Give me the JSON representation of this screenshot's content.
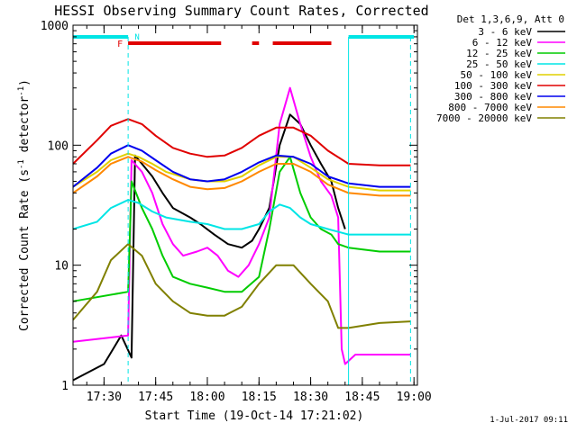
{
  "chart_data": {
    "type": "line",
    "title": "HESSI Observing Summary Count Rates, Corrected",
    "xlabel": "Start Time (19-Oct-14 17:21:02)",
    "ylabel": "Corrected Count Rate (s-1 detector-1)",
    "ylabel_parts": {
      "main": "Corrected Count Rate (s",
      "sup1": "-1",
      "mid": " detector",
      "sup2": "-1",
      "end": ")"
    },
    "yscale": "log",
    "xlim": [
      "17:21",
      "19:01"
    ],
    "ylim": [
      1,
      1000
    ],
    "x_ticks": [
      "17:30",
      "17:45",
      "18:00",
      "18:15",
      "18:30",
      "18:45",
      "19:00"
    ],
    "y_ticks": [
      "1",
      "10",
      "100",
      "1000"
    ],
    "legend_title": "Det 1,3,6,9, Att 0",
    "legend_position": "top-right",
    "footer_date": "1-Jul-2017 09:11",
    "flag_labels": {
      "flare": "F",
      "night": "N"
    },
    "flags": {
      "night_intervals": [
        [
          "17:21",
          "17:37"
        ],
        [
          "18:41",
          "19:00"
        ]
      ],
      "flare_intervals": [
        [
          "17:37",
          "18:04"
        ],
        [
          "18:13",
          "18:15"
        ],
        [
          "18:19",
          "18:36"
        ]
      ],
      "night_color": "#00e5e5",
      "flare_color": "#e00000"
    },
    "vertical_markers": [
      "17:37",
      "18:41",
      "18:59"
    ],
    "series": [
      {
        "name": "3 - 6 keV",
        "color": "#000000",
        "points": [
          [
            "17:21",
            1.1
          ],
          [
            "17:30",
            1.5
          ],
          [
            "17:35",
            2.6
          ],
          [
            "17:38",
            1.7
          ],
          [
            "17:39",
            82
          ],
          [
            "17:41",
            70
          ],
          [
            "17:44",
            55
          ],
          [
            "17:47",
            40
          ],
          [
            "17:50",
            30
          ],
          [
            "17:55",
            25
          ],
          [
            "17:58",
            22
          ],
          [
            "18:02",
            18
          ],
          [
            "18:06",
            15
          ],
          [
            "18:10",
            14
          ],
          [
            "18:13",
            16
          ],
          [
            "18:15",
            20
          ],
          [
            "18:18",
            30
          ],
          [
            "18:21",
            100
          ],
          [
            "18:24",
            180
          ],
          [
            "18:27",
            150
          ],
          [
            "18:30",
            100
          ],
          [
            "18:33",
            70
          ],
          [
            "18:36",
            50
          ],
          [
            "18:38",
            30
          ],
          [
            "18:40",
            20
          ]
        ]
      },
      {
        "name": "6 - 12 keV",
        "color": "#ff00ff",
        "points": [
          [
            "17:21",
            2.3
          ],
          [
            "17:37",
            2.6
          ],
          [
            "17:38",
            75
          ],
          [
            "17:41",
            60
          ],
          [
            "17:44",
            40
          ],
          [
            "17:47",
            22
          ],
          [
            "17:50",
            15
          ],
          [
            "17:53",
            12
          ],
          [
            "17:57",
            13
          ],
          [
            "18:00",
            14
          ],
          [
            "18:03",
            12
          ],
          [
            "18:06",
            9
          ],
          [
            "18:09",
            8
          ],
          [
            "18:12",
            10
          ],
          [
            "18:15",
            15
          ],
          [
            "18:18",
            25
          ],
          [
            "18:21",
            150
          ],
          [
            "18:24",
            300
          ],
          [
            "18:27",
            150
          ],
          [
            "18:30",
            80
          ],
          [
            "18:33",
            50
          ],
          [
            "18:36",
            38
          ],
          [
            "18:38",
            25
          ],
          [
            "18:39",
            2
          ],
          [
            "18:40",
            1.5
          ],
          [
            "18:43",
            1.8
          ],
          [
            "18:50",
            1.8
          ],
          [
            "18:59",
            1.8
          ]
        ]
      },
      {
        "name": "12 - 25 keV",
        "color": "#00cc00",
        "points": [
          [
            "17:21",
            5
          ],
          [
            "17:37",
            6
          ],
          [
            "17:38",
            50
          ],
          [
            "17:41",
            30
          ],
          [
            "17:44",
            20
          ],
          [
            "17:47",
            12
          ],
          [
            "17:50",
            8
          ],
          [
            "17:55",
            7
          ],
          [
            "18:00",
            6.5
          ],
          [
            "18:05",
            6
          ],
          [
            "18:10",
            6
          ],
          [
            "18:15",
            8
          ],
          [
            "18:18",
            20
          ],
          [
            "18:21",
            60
          ],
          [
            "18:24",
            80
          ],
          [
            "18:27",
            40
          ],
          [
            "18:30",
            25
          ],
          [
            "18:33",
            20
          ],
          [
            "18:36",
            18
          ],
          [
            "18:38",
            15
          ],
          [
            "18:41",
            14
          ],
          [
            "18:50",
            13
          ],
          [
            "18:59",
            13
          ]
        ]
      },
      {
        "name": "25 - 50 keV",
        "color": "#00e5e5",
        "points": [
          [
            "17:21",
            20
          ],
          [
            "17:28",
            23
          ],
          [
            "17:32",
            30
          ],
          [
            "17:37",
            35
          ],
          [
            "17:40",
            33
          ],
          [
            "17:44",
            28
          ],
          [
            "17:48",
            25
          ],
          [
            "17:55",
            23
          ],
          [
            "18:00",
            22
          ],
          [
            "18:05",
            20
          ],
          [
            "18:10",
            20
          ],
          [
            "18:15",
            22
          ],
          [
            "18:18",
            28
          ],
          [
            "18:21",
            32
          ],
          [
            "18:24",
            30
          ],
          [
            "18:27",
            25
          ],
          [
            "18:30",
            22
          ],
          [
            "18:35",
            20
          ],
          [
            "18:41",
            18
          ],
          [
            "18:50",
            18
          ],
          [
            "18:59",
            18
          ]
        ]
      },
      {
        "name": "50 - 100 keV",
        "color": "#e0d000",
        "points": [
          [
            "17:21",
            45
          ],
          [
            "17:28",
            60
          ],
          [
            "17:32",
            75
          ],
          [
            "17:37",
            85
          ],
          [
            "17:40",
            80
          ],
          [
            "17:44",
            70
          ],
          [
            "17:48",
            60
          ],
          [
            "17:55",
            52
          ],
          [
            "18:00",
            50
          ],
          [
            "18:05",
            50
          ],
          [
            "18:10",
            55
          ],
          [
            "18:15",
            68
          ],
          [
            "18:20",
            80
          ],
          [
            "18:25",
            80
          ],
          [
            "18:30",
            65
          ],
          [
            "18:35",
            52
          ],
          [
            "18:41",
            45
          ],
          [
            "18:50",
            42
          ],
          [
            "18:59",
            42
          ]
        ]
      },
      {
        "name": "100 - 300 keV",
        "color": "#e00000",
        "points": [
          [
            "17:21",
            70
          ],
          [
            "17:28",
            110
          ],
          [
            "17:32",
            145
          ],
          [
            "17:37",
            165
          ],
          [
            "17:41",
            150
          ],
          [
            "17:45",
            120
          ],
          [
            "17:50",
            95
          ],
          [
            "17:55",
            85
          ],
          [
            "18:00",
            80
          ],
          [
            "18:05",
            82
          ],
          [
            "18:10",
            95
          ],
          [
            "18:15",
            120
          ],
          [
            "18:20",
            140
          ],
          [
            "18:25",
            140
          ],
          [
            "18:30",
            120
          ],
          [
            "18:35",
            90
          ],
          [
            "18:41",
            70
          ],
          [
            "18:50",
            68
          ],
          [
            "18:59",
            68
          ]
        ]
      },
      {
        "name": "300 - 800 keV",
        "color": "#0000ee",
        "points": [
          [
            "17:21",
            45
          ],
          [
            "17:28",
            65
          ],
          [
            "17:32",
            85
          ],
          [
            "17:37",
            100
          ],
          [
            "17:41",
            90
          ],
          [
            "17:45",
            75
          ],
          [
            "17:50",
            60
          ],
          [
            "17:55",
            52
          ],
          [
            "18:00",
            50
          ],
          [
            "18:05",
            52
          ],
          [
            "18:10",
            60
          ],
          [
            "18:15",
            72
          ],
          [
            "18:20",
            82
          ],
          [
            "18:25",
            80
          ],
          [
            "18:30",
            70
          ],
          [
            "18:35",
            55
          ],
          [
            "18:41",
            48
          ],
          [
            "18:50",
            45
          ],
          [
            "18:59",
            45
          ]
        ]
      },
      {
        "name": "800 - 7000 keV",
        "color": "#ff8800",
        "points": [
          [
            "17:21",
            40
          ],
          [
            "17:28",
            55
          ],
          [
            "17:32",
            70
          ],
          [
            "17:37",
            80
          ],
          [
            "17:41",
            73
          ],
          [
            "17:45",
            62
          ],
          [
            "17:50",
            52
          ],
          [
            "17:55",
            45
          ],
          [
            "18:00",
            43
          ],
          [
            "18:05",
            44
          ],
          [
            "18:10",
            50
          ],
          [
            "18:15",
            60
          ],
          [
            "18:20",
            70
          ],
          [
            "18:25",
            70
          ],
          [
            "18:30",
            60
          ],
          [
            "18:35",
            47
          ],
          [
            "18:41",
            40
          ],
          [
            "18:50",
            38
          ],
          [
            "18:59",
            38
          ]
        ]
      },
      {
        "name": "7000 - 20000 keV",
        "color": "#808000",
        "points": [
          [
            "17:21",
            3.5
          ],
          [
            "17:28",
            6
          ],
          [
            "17:32",
            11
          ],
          [
            "17:37",
            15
          ],
          [
            "17:41",
            12
          ],
          [
            "17:45",
            7
          ],
          [
            "17:50",
            5
          ],
          [
            "17:55",
            4
          ],
          [
            "18:00",
            3.8
          ],
          [
            "18:05",
            3.8
          ],
          [
            "18:10",
            4.5
          ],
          [
            "18:15",
            7
          ],
          [
            "18:20",
            10
          ],
          [
            "18:25",
            10
          ],
          [
            "18:30",
            7
          ],
          [
            "18:35",
            5
          ],
          [
            "18:38",
            3
          ],
          [
            "18:41",
            3
          ],
          [
            "18:50",
            3.3
          ],
          [
            "18:59",
            3.4
          ]
        ]
      }
    ]
  }
}
